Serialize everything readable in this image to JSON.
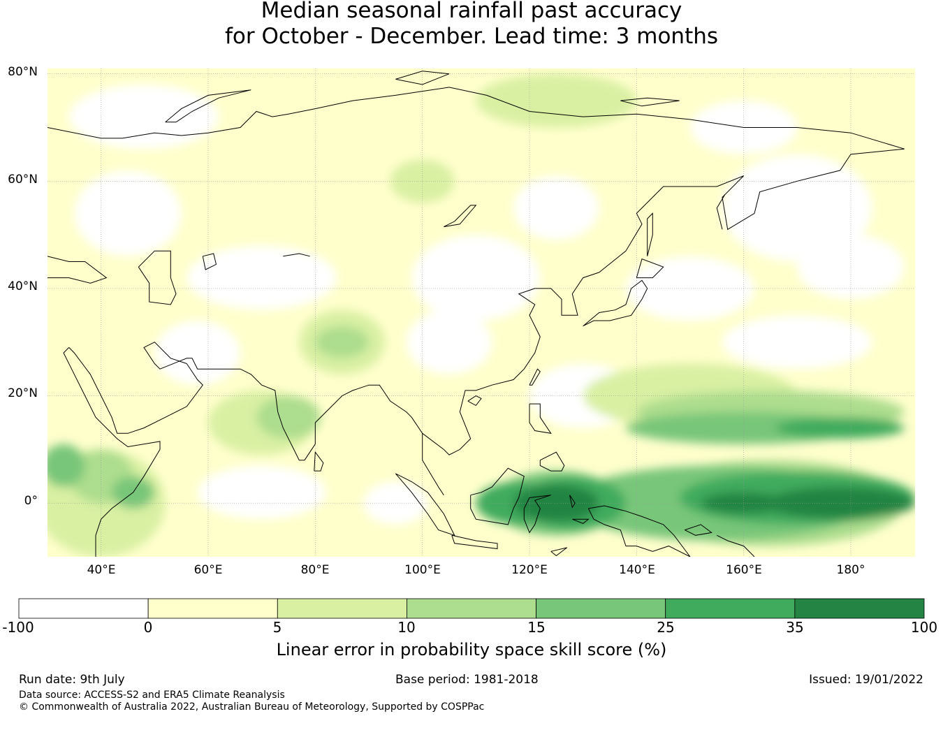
{
  "title": {
    "line1": "Median seasonal rainfall past accuracy",
    "line2": "for October - December. Lead time: 3 months"
  },
  "map": {
    "lat_labels": [
      "80°N",
      "60°N",
      "40°N",
      "20°N",
      "0°"
    ],
    "lon_labels": [
      "40°E",
      "60°E",
      "80°E",
      "100°E",
      "120°E",
      "140°E",
      "160°E",
      "180°"
    ],
    "lon_range": [
      30,
      192
    ],
    "lat_range": [
      -10,
      81
    ],
    "colors": {
      "bin_neg": "#ffffff",
      "bin_0_5": "#ffffcc",
      "bin_5_10": "#d9f0a3",
      "bin_10_15": "#addd8e",
      "bin_15_25": "#78c679",
      "bin_25_35": "#41ab5d",
      "bin_35_100": "#238443",
      "coast": "#000000",
      "grid": "#999999"
    }
  },
  "colorbar": {
    "ticks": [
      "-100",
      "0",
      "5",
      "10",
      "15",
      "25",
      "35",
      "100"
    ],
    "colors": [
      "#ffffff",
      "#ffffcc",
      "#d9f0a3",
      "#addd8e",
      "#78c679",
      "#41ab5d",
      "#238443"
    ],
    "label": "Linear error in probability space skill score (%)"
  },
  "footer": {
    "run_date": "Run date: 9th July",
    "base_period": "Base period: 1981-2018",
    "issued": "Issued: 19/01/2022",
    "data_source": "Data source: ACCESS-S2 and ERA5 Climate Reanalysis",
    "copyright": "© Commonwealth of Australia 2022, Australian Bureau of Meteorology, Supported by COSPPac"
  }
}
